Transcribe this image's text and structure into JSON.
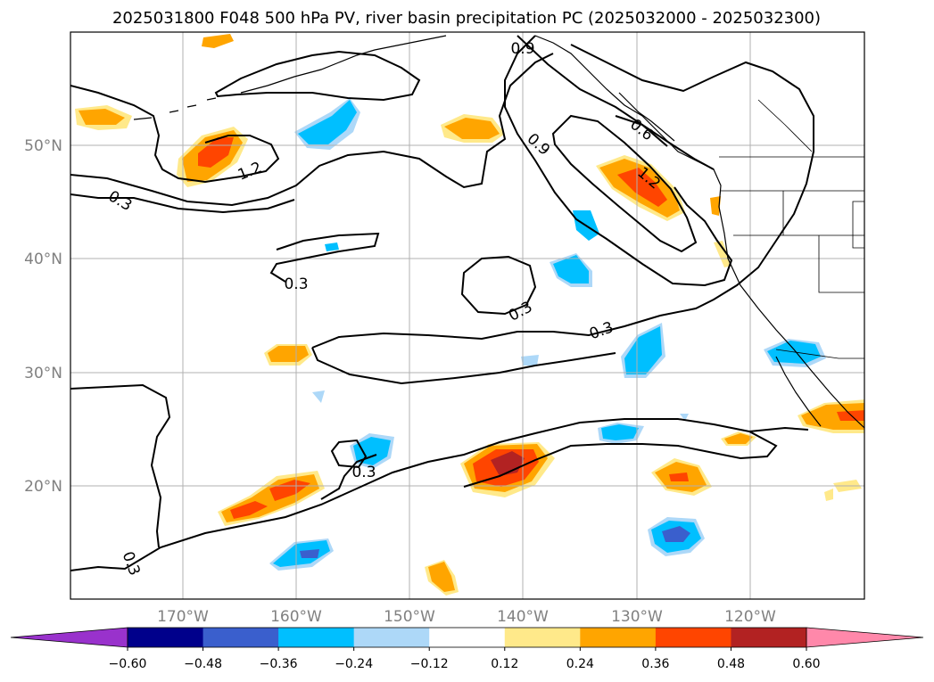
{
  "title": "2025031800 F048 500 hPa PV, river basin precipitation PC (2025032000 - 2025032300)",
  "map": {
    "lon_labels": [
      "170°W",
      "160°W",
      "150°W",
      "140°W",
      "130°W",
      "120°W"
    ],
    "lat_labels": [
      "50°N",
      "40°N",
      "30°N",
      "20°N"
    ],
    "contour_labels": [
      "0.9",
      "0.6",
      "0.9",
      "1.2",
      "1.2",
      "0.3",
      "0.3",
      "0.3",
      "0.3",
      "0.3",
      "0.3"
    ]
  },
  "colorbar": {
    "tick_labels": [
      "−0.60",
      "−0.48",
      "−0.36",
      "−0.24",
      "−0.12",
      "0.12",
      "0.24",
      "0.36",
      "0.48",
      "0.60"
    ],
    "colors": [
      "#9932cc",
      "#00008b",
      "#3a5fcd",
      "#00bfff",
      "#add8f8",
      "#ffffff",
      "#ffe98a",
      "#ffa500",
      "#ff4500",
      "#b22222",
      "#ff88aa"
    ]
  },
  "colors": {
    "grid": "#b0b0b0",
    "tick_label": "#808080",
    "contour": "#000000"
  }
}
